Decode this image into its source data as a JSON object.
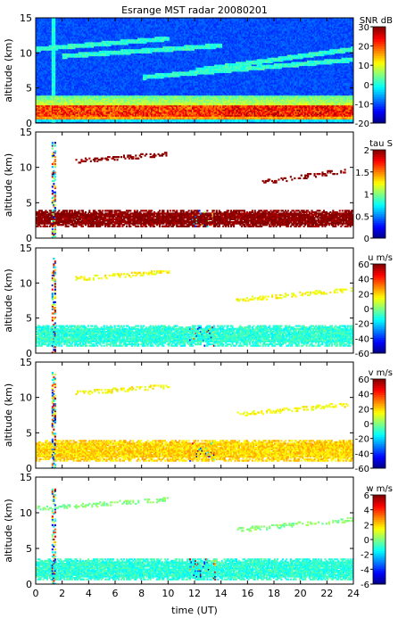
{
  "chart_data": {
    "title": "Esrange MST radar 20080201",
    "type": "heatmap",
    "x": {
      "label": "time (UT)",
      "range": [
        0,
        24
      ],
      "ticks": [
        0,
        2,
        4,
        6,
        8,
        10,
        12,
        14,
        16,
        18,
        20,
        22,
        24
      ],
      "tick_labels": [
        "0",
        "2",
        "4",
        "6",
        "8",
        "10",
        "12",
        "14",
        "16",
        "18",
        "20",
        "22",
        "24"
      ]
    },
    "panels": [
      {
        "id": "snr",
        "ylabel": "altitude (km)",
        "ylim": [
          0,
          15
        ],
        "yticks": [
          0,
          5,
          10,
          15
        ],
        "ytick_labels": [
          "0",
          "5",
          "10",
          "15"
        ],
        "colorbar": {
          "label": "SNR dB",
          "range": [
            -20,
            30
          ],
          "ticks": [
            30,
            20,
            10,
            0,
            -10,
            -20
          ],
          "tick_labels": [
            "30",
            "20",
            "10",
            "0",
            "-10",
            "-20"
          ]
        },
        "features": {
          "background": "full-coverage noise at about -10 dB above 4 km",
          "boundary_layer_km": [
            0.5,
            4
          ],
          "peak_layer_km": [
            1,
            2.5
          ],
          "upper_layers": [
            {
              "t_start": 0.0,
              "t_end": 10.0,
              "alt_start": 10.5,
              "alt_end": 12.0
            },
            {
              "t_start": 2.0,
              "t_end": 14.0,
              "alt_start": 9.5,
              "alt_end": 11.0
            },
            {
              "t_start": 8.0,
              "t_end": 24.0,
              "alt_start": 6.5,
              "alt_end": 9.0
            },
            {
              "t_start": 12.0,
              "t_end": 24.0,
              "alt_start": 7.5,
              "alt_end": 10.5
            }
          ],
          "interference_time_ut": 1.3
        }
      },
      {
        "id": "tau",
        "ylabel": "altitude (km)",
        "ylim": [
          0,
          15
        ],
        "yticks": [
          0,
          5,
          10,
          15
        ],
        "ytick_labels": [
          "0",
          "5",
          "10",
          "15"
        ],
        "colorbar": {
          "label": "tau S",
          "range": [
            0,
            2
          ],
          "ticks": [
            2,
            1.5,
            1,
            0.5,
            0
          ],
          "tick_labels": [
            "2",
            "1.5",
            "1",
            "0.5",
            "0"
          ]
        },
        "features": {
          "main_layer_km": [
            1.5,
            4
          ],
          "main_layer_value": 2,
          "upper_layers": [
            {
              "t_start": 3.0,
              "t_end": 10.0,
              "alt_start": 10.8,
              "alt_end": 11.8
            },
            {
              "t_start": 17.0,
              "t_end": 23.5,
              "alt_start": 7.8,
              "alt_end": 9.5
            }
          ]
        }
      },
      {
        "id": "u",
        "ylabel": "altitude (km)",
        "ylim": [
          0,
          15
        ],
        "yticks": [
          0,
          5,
          10,
          15
        ],
        "ytick_labels": [
          "0",
          "5",
          "10",
          "15"
        ],
        "colorbar": {
          "label": "u m/s",
          "range": [
            -60,
            60
          ],
          "ticks": [
            60,
            40,
            20,
            0,
            -20,
            -40,
            -60
          ],
          "tick_labels": [
            "60",
            "40",
            "20",
            "0",
            "-20",
            "-40",
            "-60"
          ]
        },
        "features": {
          "main_layer_km": [
            1,
            4
          ],
          "main_layer_value": -10,
          "upper_layers": [
            {
              "t_start": 3.0,
              "t_end": 10.0,
              "alt_start": 10.5,
              "alt_end": 11.5
            },
            {
              "t_start": 15.0,
              "t_end": 24.0,
              "alt_start": 7.5,
              "alt_end": 9.0
            }
          ],
          "upper_layer_value": 15
        }
      },
      {
        "id": "v",
        "ylabel": "altitude (km)",
        "ylim": [
          0,
          15
        ],
        "yticks": [
          0,
          5,
          10,
          15
        ],
        "ytick_labels": [
          "0",
          "5",
          "10",
          "15"
        ],
        "colorbar": {
          "label": "v m/s",
          "range": [
            -60,
            60
          ],
          "ticks": [
            60,
            40,
            20,
            0,
            -20,
            -40,
            -60
          ],
          "tick_labels": [
            "60",
            "40",
            "20",
            "0",
            "-20",
            "-40",
            "-60"
          ]
        },
        "features": {
          "main_layer_km": [
            1,
            4
          ],
          "main_layer_value": 20,
          "upper_layers": [
            {
              "t_start": 3.0,
              "t_end": 10.0,
              "alt_start": 10.5,
              "alt_end": 11.5
            },
            {
              "t_start": 15.0,
              "t_end": 24.0,
              "alt_start": 7.5,
              "alt_end": 9.0
            }
          ],
          "upper_layer_value": 15
        }
      },
      {
        "id": "w",
        "ylabel": "altitude (km)",
        "ylim": [
          0,
          15
        ],
        "yticks": [
          0,
          5,
          10,
          15
        ],
        "ytick_labels": [
          "0",
          "5",
          "10",
          "15"
        ],
        "colorbar": {
          "label": "w m/s",
          "range": [
            -6,
            6
          ],
          "ticks": [
            6,
            4,
            2,
            0,
            -2,
            -4,
            -6
          ],
          "tick_labels": [
            "6",
            "4",
            "2",
            "0",
            "-2",
            "-4",
            "-6"
          ]
        },
        "features": {
          "main_layer_km": [
            0.5,
            3.5
          ],
          "main_layer_value": -1,
          "upper_layers": [
            {
              "t_start": 0.0,
              "t_end": 10.0,
              "alt_start": 10.5,
              "alt_end": 11.8
            },
            {
              "t_start": 15.0,
              "t_end": 24.0,
              "alt_start": 7.5,
              "alt_end": 9.0
            }
          ],
          "upper_layer_value": 0
        }
      }
    ],
    "colormap": [
      "#000080",
      "#0000ff",
      "#0080ff",
      "#00ffff",
      "#80ff80",
      "#ffff00",
      "#ff8000",
      "#ff0000",
      "#800000"
    ]
  }
}
